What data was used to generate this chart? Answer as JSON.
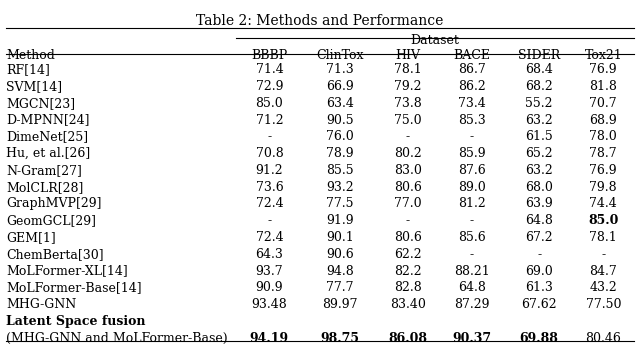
{
  "title": "Table 2: Methods and Performance",
  "header_level2": [
    "Method",
    "BBBP",
    "ClinTox",
    "HIV",
    "BACE",
    "SIDER",
    "Tox21"
  ],
  "rows": [
    [
      "RF[14]",
      "71.4",
      "71.3",
      "78.1",
      "86.7",
      "68.4",
      "76.9"
    ],
    [
      "SVM[14]",
      "72.9",
      "66.9",
      "79.2",
      "86.2",
      "68.2",
      "81.8"
    ],
    [
      "MGCN[23]",
      "85.0",
      "63.4",
      "73.8",
      "73.4",
      "55.2",
      "70.7"
    ],
    [
      "D-MPNN[24]",
      "71.2",
      "90.5",
      "75.0",
      "85.3",
      "63.2",
      "68.9"
    ],
    [
      "DimeNet[25]",
      "-",
      "76.0",
      "-",
      "-",
      "61.5",
      "78.0"
    ],
    [
      "Hu, et al.[26]",
      "70.8",
      "78.9",
      "80.2",
      "85.9",
      "65.2",
      "78.7"
    ],
    [
      "N-Gram[27]",
      "91.2",
      "85.5",
      "83.0",
      "87.6",
      "63.2",
      "76.9"
    ],
    [
      "MolCLR[28]",
      "73.6",
      "93.2",
      "80.6",
      "89.0",
      "68.0",
      "79.8"
    ],
    [
      "GraphMVP[29]",
      "72.4",
      "77.5",
      "77.0",
      "81.2",
      "63.9",
      "74.4"
    ],
    [
      "GeomGCL[29]",
      "-",
      "91.9",
      "-",
      "-",
      "64.8",
      "85.0"
    ],
    [
      "GEM[1]",
      "72.4",
      "90.1",
      "80.6",
      "85.6",
      "67.2",
      "78.1"
    ],
    [
      "ChemBerta[30]",
      "64.3",
      "90.6",
      "62.2",
      "-",
      "-",
      "-"
    ],
    [
      "MoLFormer-XL[14]",
      "93.7",
      "94.8",
      "82.2",
      "88.21",
      "69.0",
      "84.7"
    ],
    [
      "MoLFormer-Base[14]",
      "90.9",
      "77.7",
      "82.8",
      "64.8",
      "61.3",
      "43.2"
    ],
    [
      "MHG-GNN",
      "93.48",
      "89.97",
      "83.40",
      "87.29",
      "67.62",
      "77.50"
    ],
    [
      "__bold__Latent Space fusion",
      "",
      "",
      "",
      "",
      "",
      ""
    ],
    [
      "(MHG-GNN and MoLFormer-Base)",
      "94.19",
      "98.75",
      "86.08",
      "90.37",
      "69.88",
      "80.46"
    ]
  ],
  "bold_cells": {
    "9_6": true,
    "16_1": true,
    "16_2": true,
    "16_3": true,
    "16_4": true,
    "16_5": true
  },
  "bg_color": "#ffffff",
  "font_size": 9,
  "title_font_size": 10
}
